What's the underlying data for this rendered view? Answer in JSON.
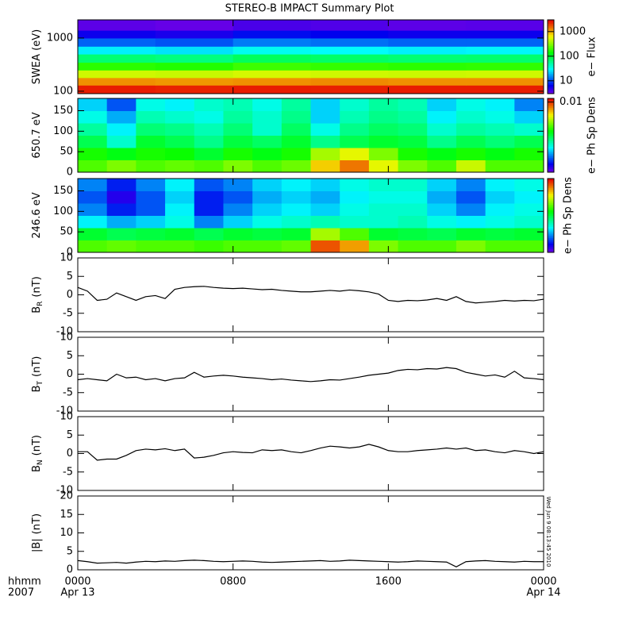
{
  "title": "STEREO-B IMPACT Summary Plot",
  "timestamp": "Wed Jun  9 08:13:45 2010",
  "x_axis": {
    "title": "hhmm",
    "year": "2007",
    "xlim": [
      0,
      24
    ],
    "xticks": [
      {
        "value": 0,
        "label": "0000"
      },
      {
        "value": 8,
        "label": "0800"
      },
      {
        "value": 16,
        "label": "1600"
      },
      {
        "value": 24,
        "label": "0000"
      }
    ],
    "dates": [
      {
        "value": 0,
        "label": "Apr 13"
      },
      {
        "value": 24,
        "label": "Apr 14"
      }
    ]
  },
  "chart_data": [
    {
      "type": "heatmap",
      "ylabel": "SWEA (eV)",
      "ylog": true,
      "ylim": [
        90,
        2200
      ],
      "yticks": [
        100,
        1000
      ],
      "y_edges": [
        90,
        130,
        180,
        250,
        350,
        500,
        700,
        1000,
        1400,
        2200
      ],
      "values": [
        [
          2500,
          2400,
          2500,
          2450,
          2500,
          2500
        ],
        [
          1200,
          1150,
          1200,
          1250,
          1200,
          1200
        ],
        [
          500,
          480,
          520,
          500,
          490,
          500
        ],
        [
          180,
          170,
          200,
          190,
          180,
          185
        ],
        [
          70,
          65,
          80,
          75,
          70,
          72
        ],
        [
          28,
          26,
          32,
          30,
          28,
          29
        ],
        [
          12,
          11,
          14,
          13,
          12,
          12
        ],
        [
          6,
          5.5,
          7,
          6.5,
          6,
          6
        ],
        [
          3.5,
          3.3,
          4,
          3.8,
          3.5,
          3.6
        ]
      ],
      "colorbar": {
        "label": "e− Flux",
        "log": true,
        "clim": [
          3,
          3000
        ],
        "ticks": [
          10,
          100,
          1000
        ],
        "colormap": "rainbow"
      }
    },
    {
      "type": "heatmap",
      "ylabel": "650.7 eV",
      "ylog": false,
      "ylim": [
        0,
        180
      ],
      "yticks": [
        0,
        50,
        100,
        150
      ],
      "y_edges": [
        0,
        30,
        60,
        90,
        120,
        150,
        180
      ],
      "values": [
        [
          0.003,
          0.0035,
          0.003,
          0.0032,
          0.003,
          0.0035,
          0.003,
          0.0033,
          0.006,
          0.008,
          0.005,
          0.0035,
          0.003,
          0.0045,
          0.003,
          0.003
        ],
        [
          0.0025,
          0.0022,
          0.0025,
          0.0024,
          0.002,
          0.0025,
          0.0022,
          0.0025,
          0.004,
          0.005,
          0.0035,
          0.0025,
          0.0022,
          0.0025,
          0.0022,
          0.0025
        ],
        [
          0.0018,
          0.0012,
          0.002,
          0.0018,
          0.0015,
          0.0019,
          0.0017,
          0.002,
          0.0015,
          0.0018,
          0.002,
          0.0019,
          0.0015,
          0.0018,
          0.0016,
          0.0018
        ],
        [
          0.0014,
          0.001,
          0.0016,
          0.0015,
          0.0013,
          0.0016,
          0.0012,
          0.0017,
          0.0011,
          0.0015,
          0.0017,
          0.0016,
          0.0012,
          0.0014,
          0.0013,
          0.0012
        ],
        [
          0.0011,
          0.0008,
          0.0013,
          0.0012,
          0.0011,
          0.0014,
          0.0012,
          0.0015,
          0.0009,
          0.0013,
          0.0015,
          0.0014,
          0.001,
          0.0012,
          0.0011,
          0.0009
        ],
        [
          0.0009,
          0.0006,
          0.0011,
          0.001,
          0.0012,
          0.0013,
          0.0011,
          0.0014,
          0.0009,
          0.0012,
          0.0014,
          0.0013,
          0.0009,
          0.0011,
          0.001,
          0.0007
        ]
      ],
      "colorbar": {
        "label": "e− Ph Sp Dens",
        "log": true,
        "clim": [
          0.0003,
          0.012
        ],
        "ticks": [
          0.01
        ],
        "colormap": "rainbow"
      }
    },
    {
      "type": "heatmap",
      "ylabel": "246.6 eV",
      "ylog": false,
      "ylim": [
        0,
        180
      ],
      "yticks": [
        0,
        50,
        100,
        150
      ],
      "y_edges": [
        0,
        30,
        60,
        90,
        120,
        150,
        180
      ],
      "values": [
        [
          0.003,
          0.0032,
          0.003,
          0.003,
          0.0028,
          0.003,
          0.003,
          0.0032,
          0.009,
          0.007,
          0.0035,
          0.003,
          0.003,
          0.0035,
          0.003,
          0.003
        ],
        [
          0.002,
          0.0018,
          0.0019,
          0.002,
          0.0018,
          0.002,
          0.0019,
          0.002,
          0.004,
          0.003,
          0.002,
          0.0019,
          0.0018,
          0.002,
          0.0019,
          0.002
        ],
        [
          0.001,
          0.0008,
          0.0009,
          0.0011,
          0.0007,
          0.0009,
          0.0011,
          0.0012,
          0.0013,
          0.0012,
          0.0012,
          0.0013,
          0.0011,
          0.001,
          0.0011,
          0.0012
        ],
        [
          0.0007,
          0.0005,
          0.0006,
          0.001,
          0.0005,
          0.0007,
          0.0009,
          0.001,
          0.0009,
          0.0011,
          0.0012,
          0.0012,
          0.0009,
          0.0007,
          0.001,
          0.0011
        ],
        [
          0.0006,
          0.0004,
          0.0006,
          0.0009,
          0.0005,
          0.0006,
          0.0008,
          0.0009,
          0.0008,
          0.001,
          0.0011,
          0.0011,
          0.0008,
          0.0006,
          0.0009,
          0.001
        ],
        [
          0.0007,
          0.0005,
          0.0007,
          0.001,
          0.0006,
          0.0007,
          0.0009,
          0.001,
          0.0009,
          0.0011,
          0.0012,
          0.0012,
          0.0009,
          0.0007,
          0.001,
          0.0011
        ]
      ],
      "colorbar": {
        "label": "e− Ph Sp Dens",
        "log": true,
        "clim": [
          0.0003,
          0.012
        ],
        "colormap": "rainbow"
      }
    },
    {
      "type": "line",
      "ylabel": "B",
      "ylabel_sub": "R",
      "ylabel_unit": "(nT)",
      "ylim": [
        -10,
        10
      ],
      "yticks": [
        -10,
        -5,
        0,
        5,
        10
      ],
      "color": "#000000",
      "x": [
        0,
        0.5,
        1,
        1.5,
        2,
        2.5,
        3,
        3.5,
        4,
        4.5,
        5,
        5.5,
        6,
        6.5,
        7,
        7.5,
        8,
        8.5,
        9,
        9.5,
        10,
        10.5,
        11,
        11.5,
        12,
        12.5,
        13,
        13.5,
        14,
        14.5,
        15,
        15.5,
        16,
        16.5,
        17,
        17.5,
        18,
        18.5,
        19,
        19.5,
        20,
        20.5,
        21,
        21.5,
        22,
        22.5,
        23,
        23.5,
        24
      ],
      "values": [
        2,
        1,
        -1.5,
        -1.2,
        0.5,
        -0.5,
        -1.5,
        -0.5,
        -0.2,
        -1,
        1.5,
        2,
        2.2,
        2.3,
        2,
        1.8,
        1.7,
        1.8,
        1.6,
        1.4,
        1.5,
        1.2,
        1,
        0.8,
        0.8,
        1,
        1.2,
        1,
        1.3,
        1.1,
        0.8,
        0.2,
        -1.5,
        -1.8,
        -1.5,
        -1.6,
        -1.4,
        -1,
        -1.5,
        -0.5,
        -1.8,
        -2.2,
        -2,
        -1.8,
        -1.5,
        -1.7,
        -1.5,
        -1.6,
        -1.2
      ]
    },
    {
      "type": "line",
      "ylabel": "B",
      "ylabel_sub": "T",
      "ylabel_unit": "(nT)",
      "ylim": [
        -10,
        10
      ],
      "yticks": [
        -10,
        -5,
        0,
        5,
        10
      ],
      "color": "#000000",
      "x": [
        0,
        0.5,
        1,
        1.5,
        2,
        2.5,
        3,
        3.5,
        4,
        4.5,
        5,
        5.5,
        6,
        6.5,
        7,
        7.5,
        8,
        8.5,
        9,
        9.5,
        10,
        10.5,
        11,
        11.5,
        12,
        12.5,
        13,
        13.5,
        14,
        14.5,
        15,
        15.5,
        16,
        16.5,
        17,
        17.5,
        18,
        18.5,
        19,
        19.5,
        20,
        20.5,
        21,
        21.5,
        22,
        22.5,
        23,
        23.5,
        24
      ],
      "values": [
        -1.5,
        -1.2,
        -1.5,
        -1.8,
        0,
        -1,
        -0.8,
        -1.5,
        -1.2,
        -1.8,
        -1.2,
        -1,
        0.5,
        -0.8,
        -0.5,
        -0.3,
        -0.5,
        -0.8,
        -1,
        -1.2,
        -1.5,
        -1.3,
        -1.6,
        -1.8,
        -2,
        -1.8,
        -1.5,
        -1.6,
        -1.2,
        -0.8,
        -0.3,
        0,
        0.3,
        1,
        1.3,
        1.2,
        1.5,
        1.4,
        1.8,
        1.5,
        0.5,
        0,
        -0.5,
        -0.2,
        -0.8,
        0.8,
        -1,
        -1.2,
        -1.5
      ]
    },
    {
      "type": "line",
      "ylabel": "B",
      "ylabel_sub": "N",
      "ylabel_unit": "(nT)",
      "ylim": [
        -10,
        10
      ],
      "yticks": [
        -10,
        -5,
        0,
        5,
        10
      ],
      "color": "#000000",
      "x": [
        0,
        0.5,
        1,
        1.5,
        2,
        2.5,
        3,
        3.5,
        4,
        4.5,
        5,
        5.5,
        6,
        6.5,
        7,
        7.5,
        8,
        8.5,
        9,
        9.5,
        10,
        10.5,
        11,
        11.5,
        12,
        12.5,
        13,
        13.5,
        14,
        14.5,
        15,
        15.5,
        16,
        16.5,
        17,
        17.5,
        18,
        18.5,
        19,
        19.5,
        20,
        20.5,
        21,
        21.5,
        22,
        22.5,
        23,
        23.5,
        24
      ],
      "values": [
        0.5,
        0.5,
        -1.8,
        -1.5,
        -1.5,
        -0.5,
        0.8,
        1.2,
        1,
        1.3,
        0.8,
        1.2,
        -1.2,
        -1,
        -0.5,
        0.2,
        0.5,
        0.3,
        0.2,
        1,
        0.8,
        1,
        0.5,
        0.2,
        0.8,
        1.5,
        2,
        1.8,
        1.5,
        1.8,
        2.5,
        1.8,
        0.8,
        0.5,
        0.5,
        0.8,
        1,
        1.2,
        1.5,
        1.2,
        1.5,
        0.8,
        1,
        0.5,
        0.2,
        0.8,
        0.5,
        0,
        0.5
      ]
    },
    {
      "type": "line",
      "ylabel": "|B|",
      "ylabel_unit": "(nT)",
      "ylim": [
        0,
        20
      ],
      "yticks": [
        0,
        5,
        10,
        15,
        20
      ],
      "color": "#000000",
      "x": [
        0,
        0.5,
        1,
        1.5,
        2,
        2.5,
        3,
        3.5,
        4,
        4.5,
        5,
        5.5,
        6,
        6.5,
        7,
        7.5,
        8,
        8.5,
        9,
        9.5,
        10,
        10.5,
        11,
        11.5,
        12,
        12.5,
        13,
        13.5,
        14,
        14.5,
        15,
        15.5,
        16,
        16.5,
        17,
        17.5,
        18,
        18.5,
        19,
        19.5,
        20,
        20.5,
        21,
        21.5,
        22,
        22.5,
        23,
        23.5,
        24
      ],
      "values": [
        2.5,
        2.2,
        1.8,
        1.9,
        2,
        1.8,
        2.1,
        2.3,
        2.2,
        2.4,
        2.3,
        2.5,
        2.6,
        2.5,
        2.3,
        2.2,
        2.3,
        2.4,
        2.3,
        2.1,
        2,
        2.1,
        2.2,
        2.3,
        2.4,
        2.5,
        2.3,
        2.4,
        2.6,
        2.5,
        2.4,
        2.3,
        2.2,
        2.1,
        2.2,
        2.4,
        2.3,
        2.2,
        2.1,
        0.8,
        2.2,
        2.4,
        2.5,
        2.3,
        2.2,
        2.1,
        2.3,
        2.2,
        2.2
      ]
    }
  ]
}
